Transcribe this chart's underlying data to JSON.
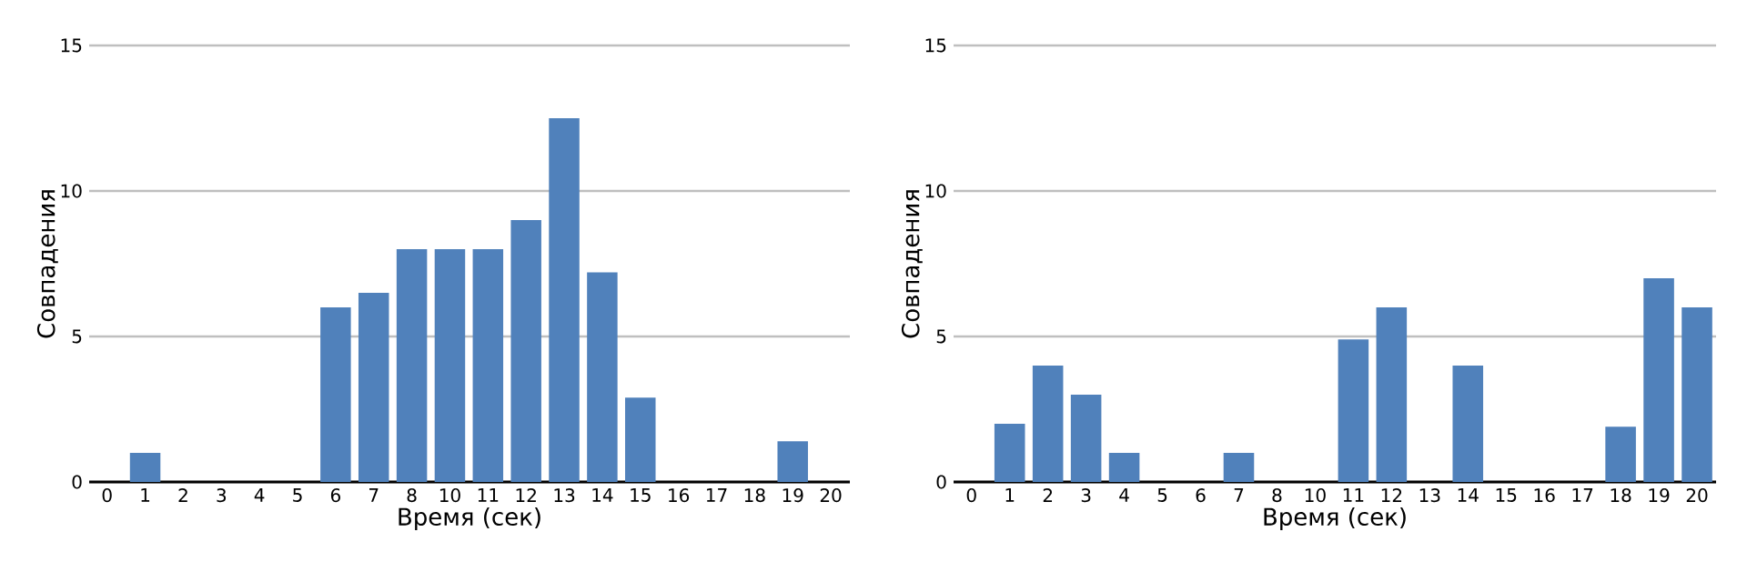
{
  "chart_data": [
    {
      "type": "bar",
      "xlabel": "Время (сек)",
      "ylabel": "Совпадения",
      "categories": [
        "0",
        "1",
        "2",
        "3",
        "4",
        "5",
        "6",
        "7",
        "8",
        "10",
        "11",
        "12",
        "13",
        "14",
        "15",
        "16",
        "17",
        "18",
        "19",
        "20"
      ],
      "values": [
        0,
        1,
        0,
        0,
        0,
        0,
        6,
        6.5,
        8,
        8,
        8,
        9,
        12.5,
        7.2,
        2.9,
        0,
        0,
        0,
        1.4,
        0
      ],
      "color": "#5081bb",
      "ylim": [
        0,
        15
      ],
      "yticks": [
        0,
        5,
        10,
        15
      ],
      "grid": "y"
    },
    {
      "type": "bar",
      "xlabel": "Время (сек)",
      "ylabel": "Совпадения",
      "categories": [
        "0",
        "1",
        "2",
        "3",
        "4",
        "5",
        "6",
        "7",
        "8",
        "10",
        "11",
        "12",
        "13",
        "14",
        "15",
        "16",
        "17",
        "18",
        "19",
        "20"
      ],
      "values": [
        0,
        2,
        4,
        3,
        1,
        0,
        0,
        1,
        0,
        0,
        4.9,
        6,
        0,
        4,
        0,
        0,
        0,
        1.9,
        7,
        6
      ],
      "color": "#5081bb",
      "ylim": [
        0,
        15
      ],
      "yticks": [
        0,
        5,
        10,
        15
      ],
      "grid": "y"
    }
  ]
}
